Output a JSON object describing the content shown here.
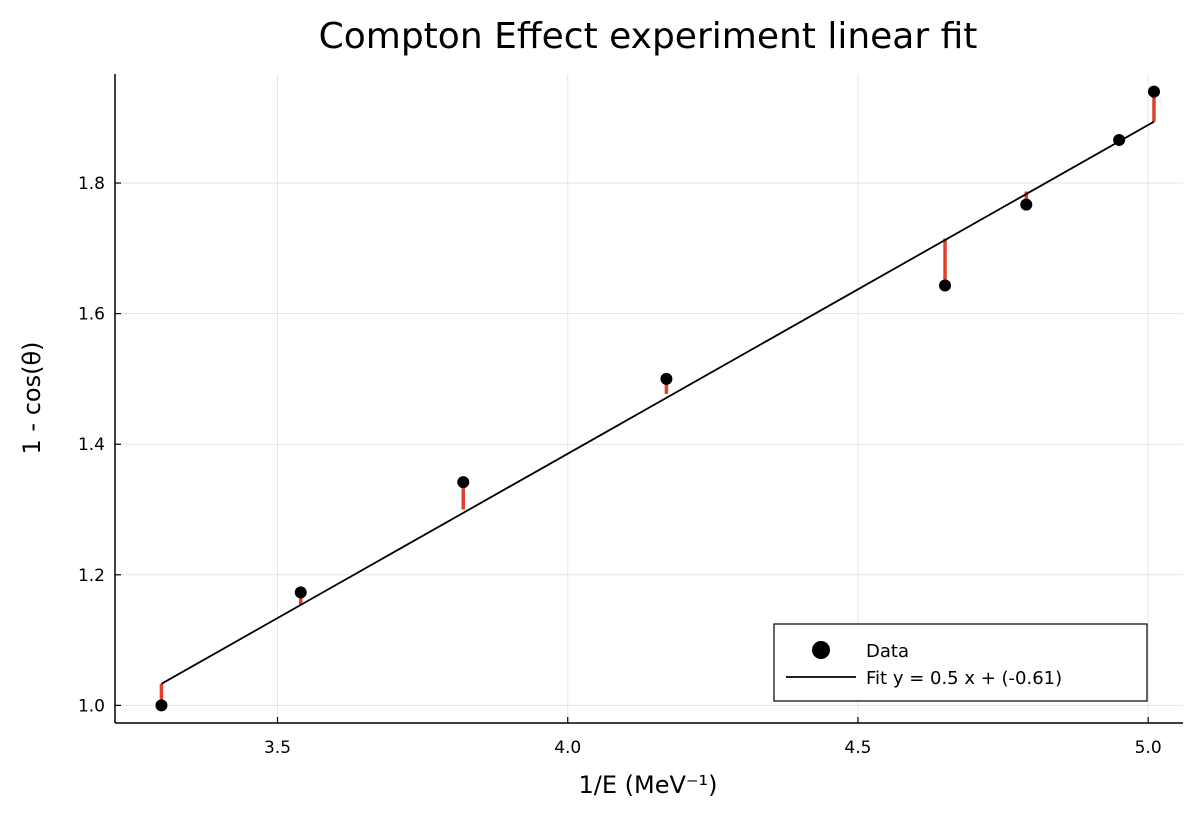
{
  "chart_data": {
    "type": "scatter",
    "title": "Compton Effect experiment linear fit",
    "xlabel": "1/E (MeV⁻¹)",
    "ylabel": "1 - cos(θ)",
    "xlim": [
      3.22,
      5.06
    ],
    "ylim": [
      0.973,
      1.967
    ],
    "xticks": [
      3.5,
      4.0,
      4.5,
      5.0
    ],
    "xtick_labels": [
      "3.5",
      "4.0",
      "4.5",
      "5.0"
    ],
    "yticks": [
      1.0,
      1.2,
      1.4,
      1.6,
      1.8
    ],
    "ytick_labels": [
      "1.0",
      "1.2",
      "1.4",
      "1.6",
      "1.8"
    ],
    "grid": true,
    "legend_position": "bottom-right",
    "series": [
      {
        "name": "Data",
        "kind": "scatter",
        "color": "#000000",
        "x": [
          3.3,
          3.54,
          3.82,
          4.17,
          4.65,
          4.79,
          4.95,
          5.01
        ],
        "y": [
          1.0,
          1.173,
          1.342,
          1.5,
          1.643,
          1.767,
          1.866,
          1.94
        ]
      },
      {
        "name": "Fit y = 0.5 x + (-0.61)",
        "kind": "line",
        "color": "#000000",
        "x": [
          3.3,
          5.01
        ],
        "y": [
          1.033,
          1.894
        ]
      },
      {
        "name": "Residuals",
        "kind": "residual",
        "color": "#e0402c",
        "x": [
          3.3,
          3.54,
          3.82,
          4.17,
          4.65,
          4.79,
          4.95,
          5.01
        ],
        "y_from": [
          1.0,
          1.173,
          1.342,
          1.5,
          1.643,
          1.767,
          1.866,
          1.94
        ],
        "y_to": [
          1.033,
          1.154,
          1.3,
          1.477,
          1.715,
          1.787,
          1.867,
          1.894
        ]
      }
    ]
  },
  "legend": {
    "items": [
      {
        "label": "Data"
      },
      {
        "label": "Fit y = 0.5 x + (-0.61)"
      }
    ]
  }
}
